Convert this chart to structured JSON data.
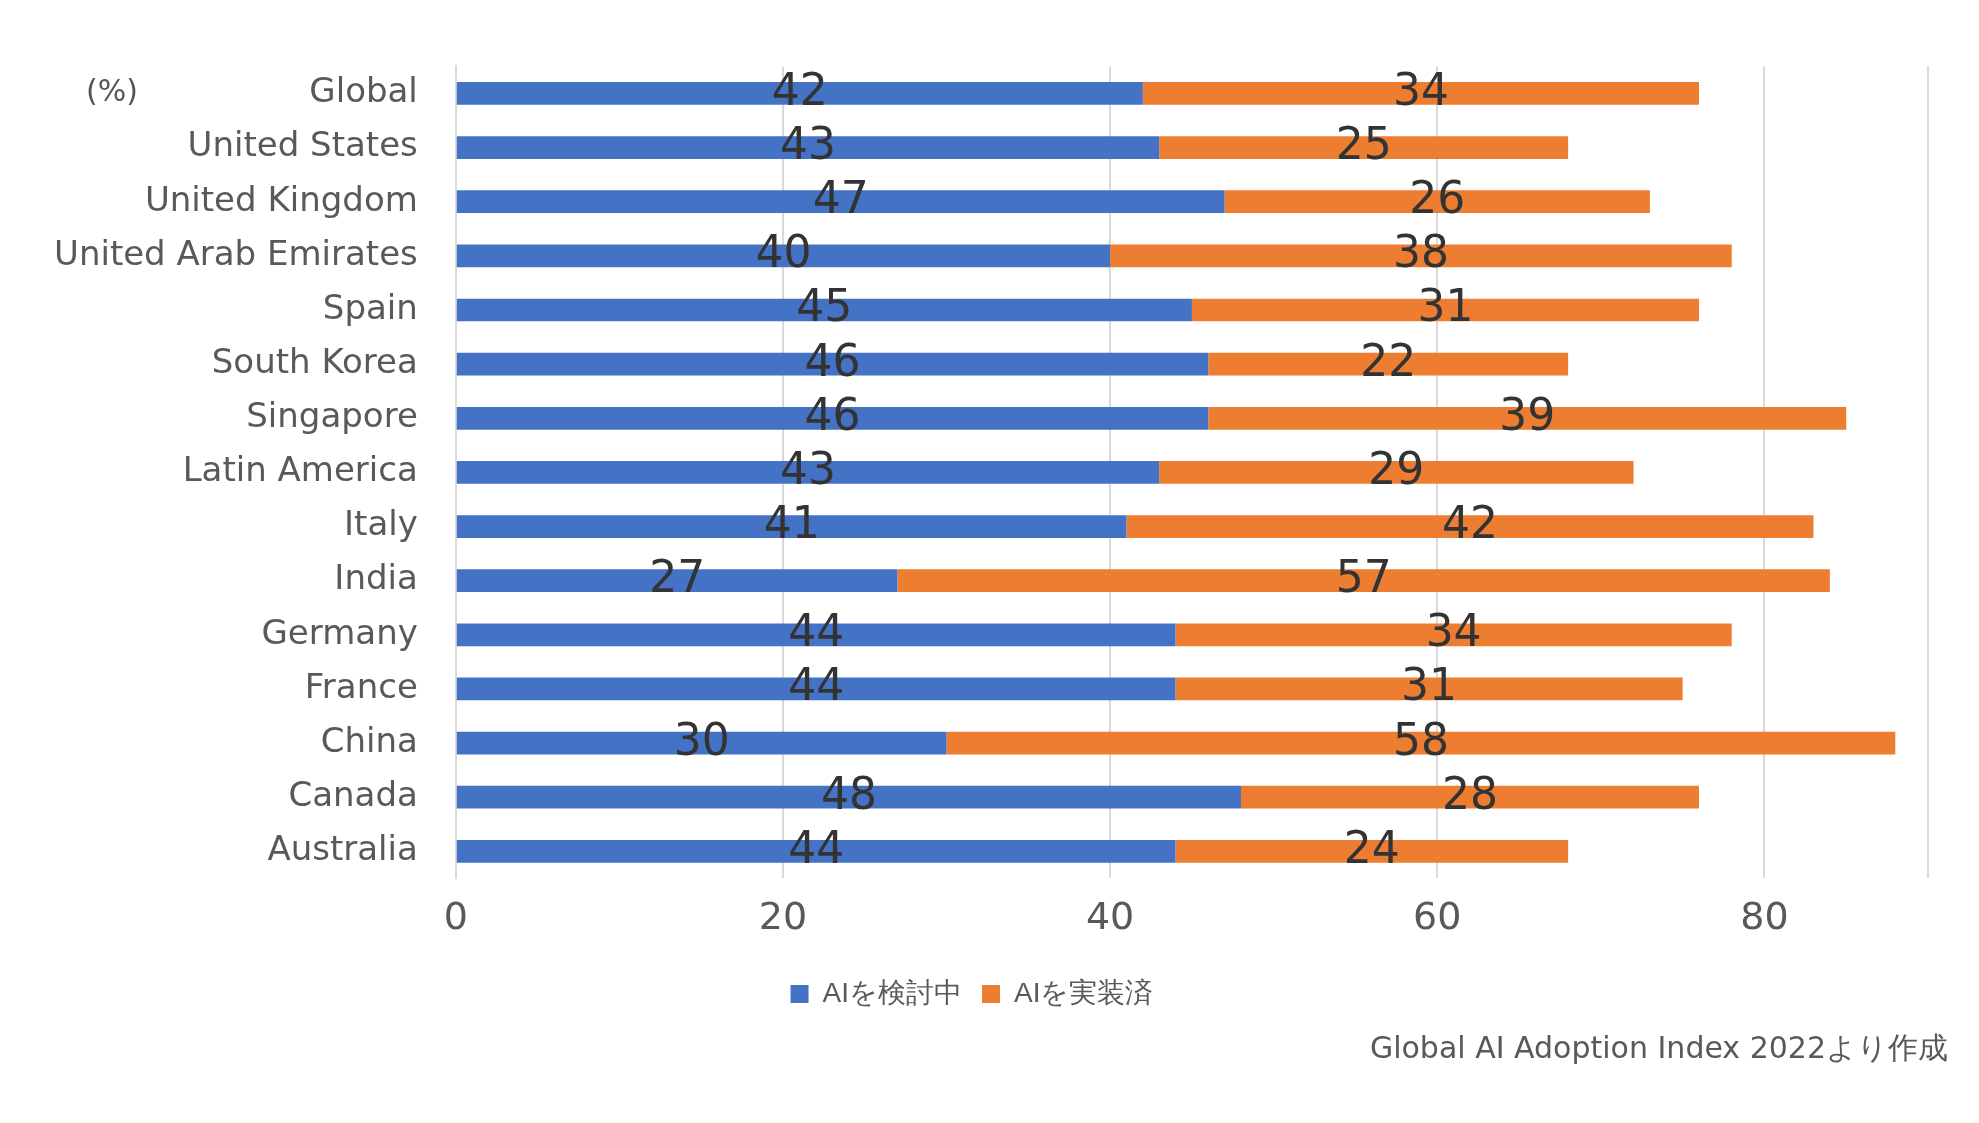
{
  "chart_data": {
    "type": "bar",
    "orientation": "horizontal",
    "stacked": true,
    "categories": [
      "Global",
      "United States",
      "United Kingdom",
      "United Arab Emirates",
      "Spain",
      "South Korea",
      "Singapore",
      "Latin America",
      "Italy",
      "India",
      "Germany",
      "France",
      "China",
      "Canada",
      "Australia"
    ],
    "series": [
      {
        "name": "AIを検討中",
        "color": "#4472c4",
        "values": [
          42,
          43,
          47,
          40,
          45,
          46,
          46,
          43,
          41,
          27,
          44,
          44,
          30,
          48,
          44
        ]
      },
      {
        "name": "AIを実装済",
        "color": "#ed7d31",
        "values": [
          34,
          25,
          26,
          38,
          31,
          22,
          39,
          29,
          42,
          57,
          34,
          31,
          58,
          28,
          24
        ]
      }
    ],
    "xlim": [
      0,
      90
    ],
    "xticks": [
      0,
      20,
      40,
      60,
      80,
      {
        "value": 90,
        "label": null
      }
    ],
    "grid": "x",
    "legend": "bottom",
    "data_labels": true,
    "annotations": [
      "(%)",
      "Global AI Adoption Index 2022より作成"
    ]
  }
}
